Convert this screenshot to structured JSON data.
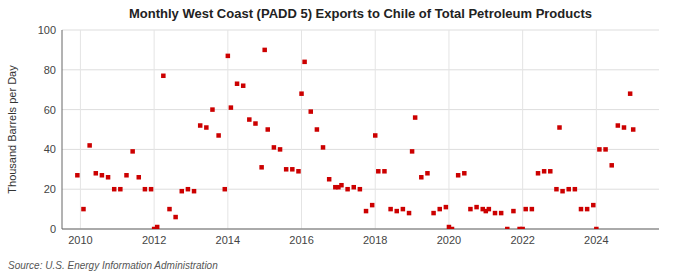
{
  "chart_data": {
    "type": "scatter",
    "title": "Monthly West Coast (PADD 5) Exports to Chile of Total Petroleum Products",
    "y_label": "Thousand Barrels per Day",
    "annotations": [
      "Source: U.S. Energy Information Administration"
    ],
    "color": "#cc0000",
    "marker": "square",
    "grid": true,
    "xlim": [
      2009.5,
      2025.7
    ],
    "xticks": [
      2010,
      2012,
      2014,
      2016,
      2018,
      2020,
      2022,
      2024
    ],
    "ylim": [
      0,
      100
    ],
    "yticks": [
      0,
      20,
      40,
      60,
      80,
      100
    ],
    "x": [
      2009.917,
      2010.083,
      2010.25,
      2010.417,
      2010.583,
      2010.75,
      2010.917,
      2011.083,
      2011.25,
      2011.417,
      2011.583,
      2011.75,
      2011.917,
      2012.0,
      2012.083,
      2012.25,
      2012.417,
      2012.583,
      2012.75,
      2012.917,
      2013.083,
      2013.25,
      2013.417,
      2013.583,
      2013.75,
      2013.917,
      2014.0,
      2014.083,
      2014.25,
      2014.417,
      2014.583,
      2014.75,
      2014.917,
      2015.0,
      2015.083,
      2015.25,
      2015.417,
      2015.583,
      2015.75,
      2015.917,
      2016.0,
      2016.083,
      2016.25,
      2016.417,
      2016.583,
      2016.75,
      2016.917,
      2017.0,
      2017.083,
      2017.25,
      2017.417,
      2017.583,
      2017.75,
      2017.917,
      2018.0,
      2018.083,
      2018.25,
      2018.417,
      2018.583,
      2018.75,
      2018.917,
      2019.0,
      2019.083,
      2019.25,
      2019.417,
      2019.583,
      2019.75,
      2019.917,
      2020.0,
      2020.083,
      2020.25,
      2020.417,
      2020.583,
      2020.75,
      2020.917,
      2021.0,
      2021.083,
      2021.25,
      2021.417,
      2021.583,
      2021.75,
      2021.917,
      2022.0,
      2022.083,
      2022.25,
      2022.417,
      2022.583,
      2022.75,
      2022.917,
      2023.0,
      2023.083,
      2023.25,
      2023.417,
      2023.583,
      2023.75,
      2023.917,
      2024.0,
      2024.083,
      2024.25,
      2024.417,
      2024.583,
      2024.75,
      2024.917,
      2025.0
    ],
    "values": [
      27,
      10,
      42,
      28,
      27,
      26,
      20,
      20,
      27,
      39,
      26,
      20,
      20,
      0,
      1,
      77,
      10,
      6,
      19,
      20,
      19,
      52,
      51,
      60,
      47,
      20,
      87,
      61,
      73,
      72,
      55,
      53,
      31,
      90,
      50,
      41,
      40,
      30,
      30,
      29,
      68,
      84,
      59,
      50,
      41,
      25,
      21,
      21,
      22,
      20,
      21,
      20,
      9,
      12,
      47,
      29,
      29,
      10,
      9,
      10,
      8,
      39,
      56,
      26,
      28,
      8,
      10,
      11,
      1,
      0,
      27,
      28,
      10,
      11,
      10,
      9,
      10,
      8,
      8,
      0,
      9,
      0,
      0,
      10,
      10,
      28,
      29,
      29,
      20,
      51,
      19,
      20,
      20,
      10,
      10,
      12,
      0,
      40,
      40,
      32,
      52,
      51,
      68,
      50
    ]
  }
}
